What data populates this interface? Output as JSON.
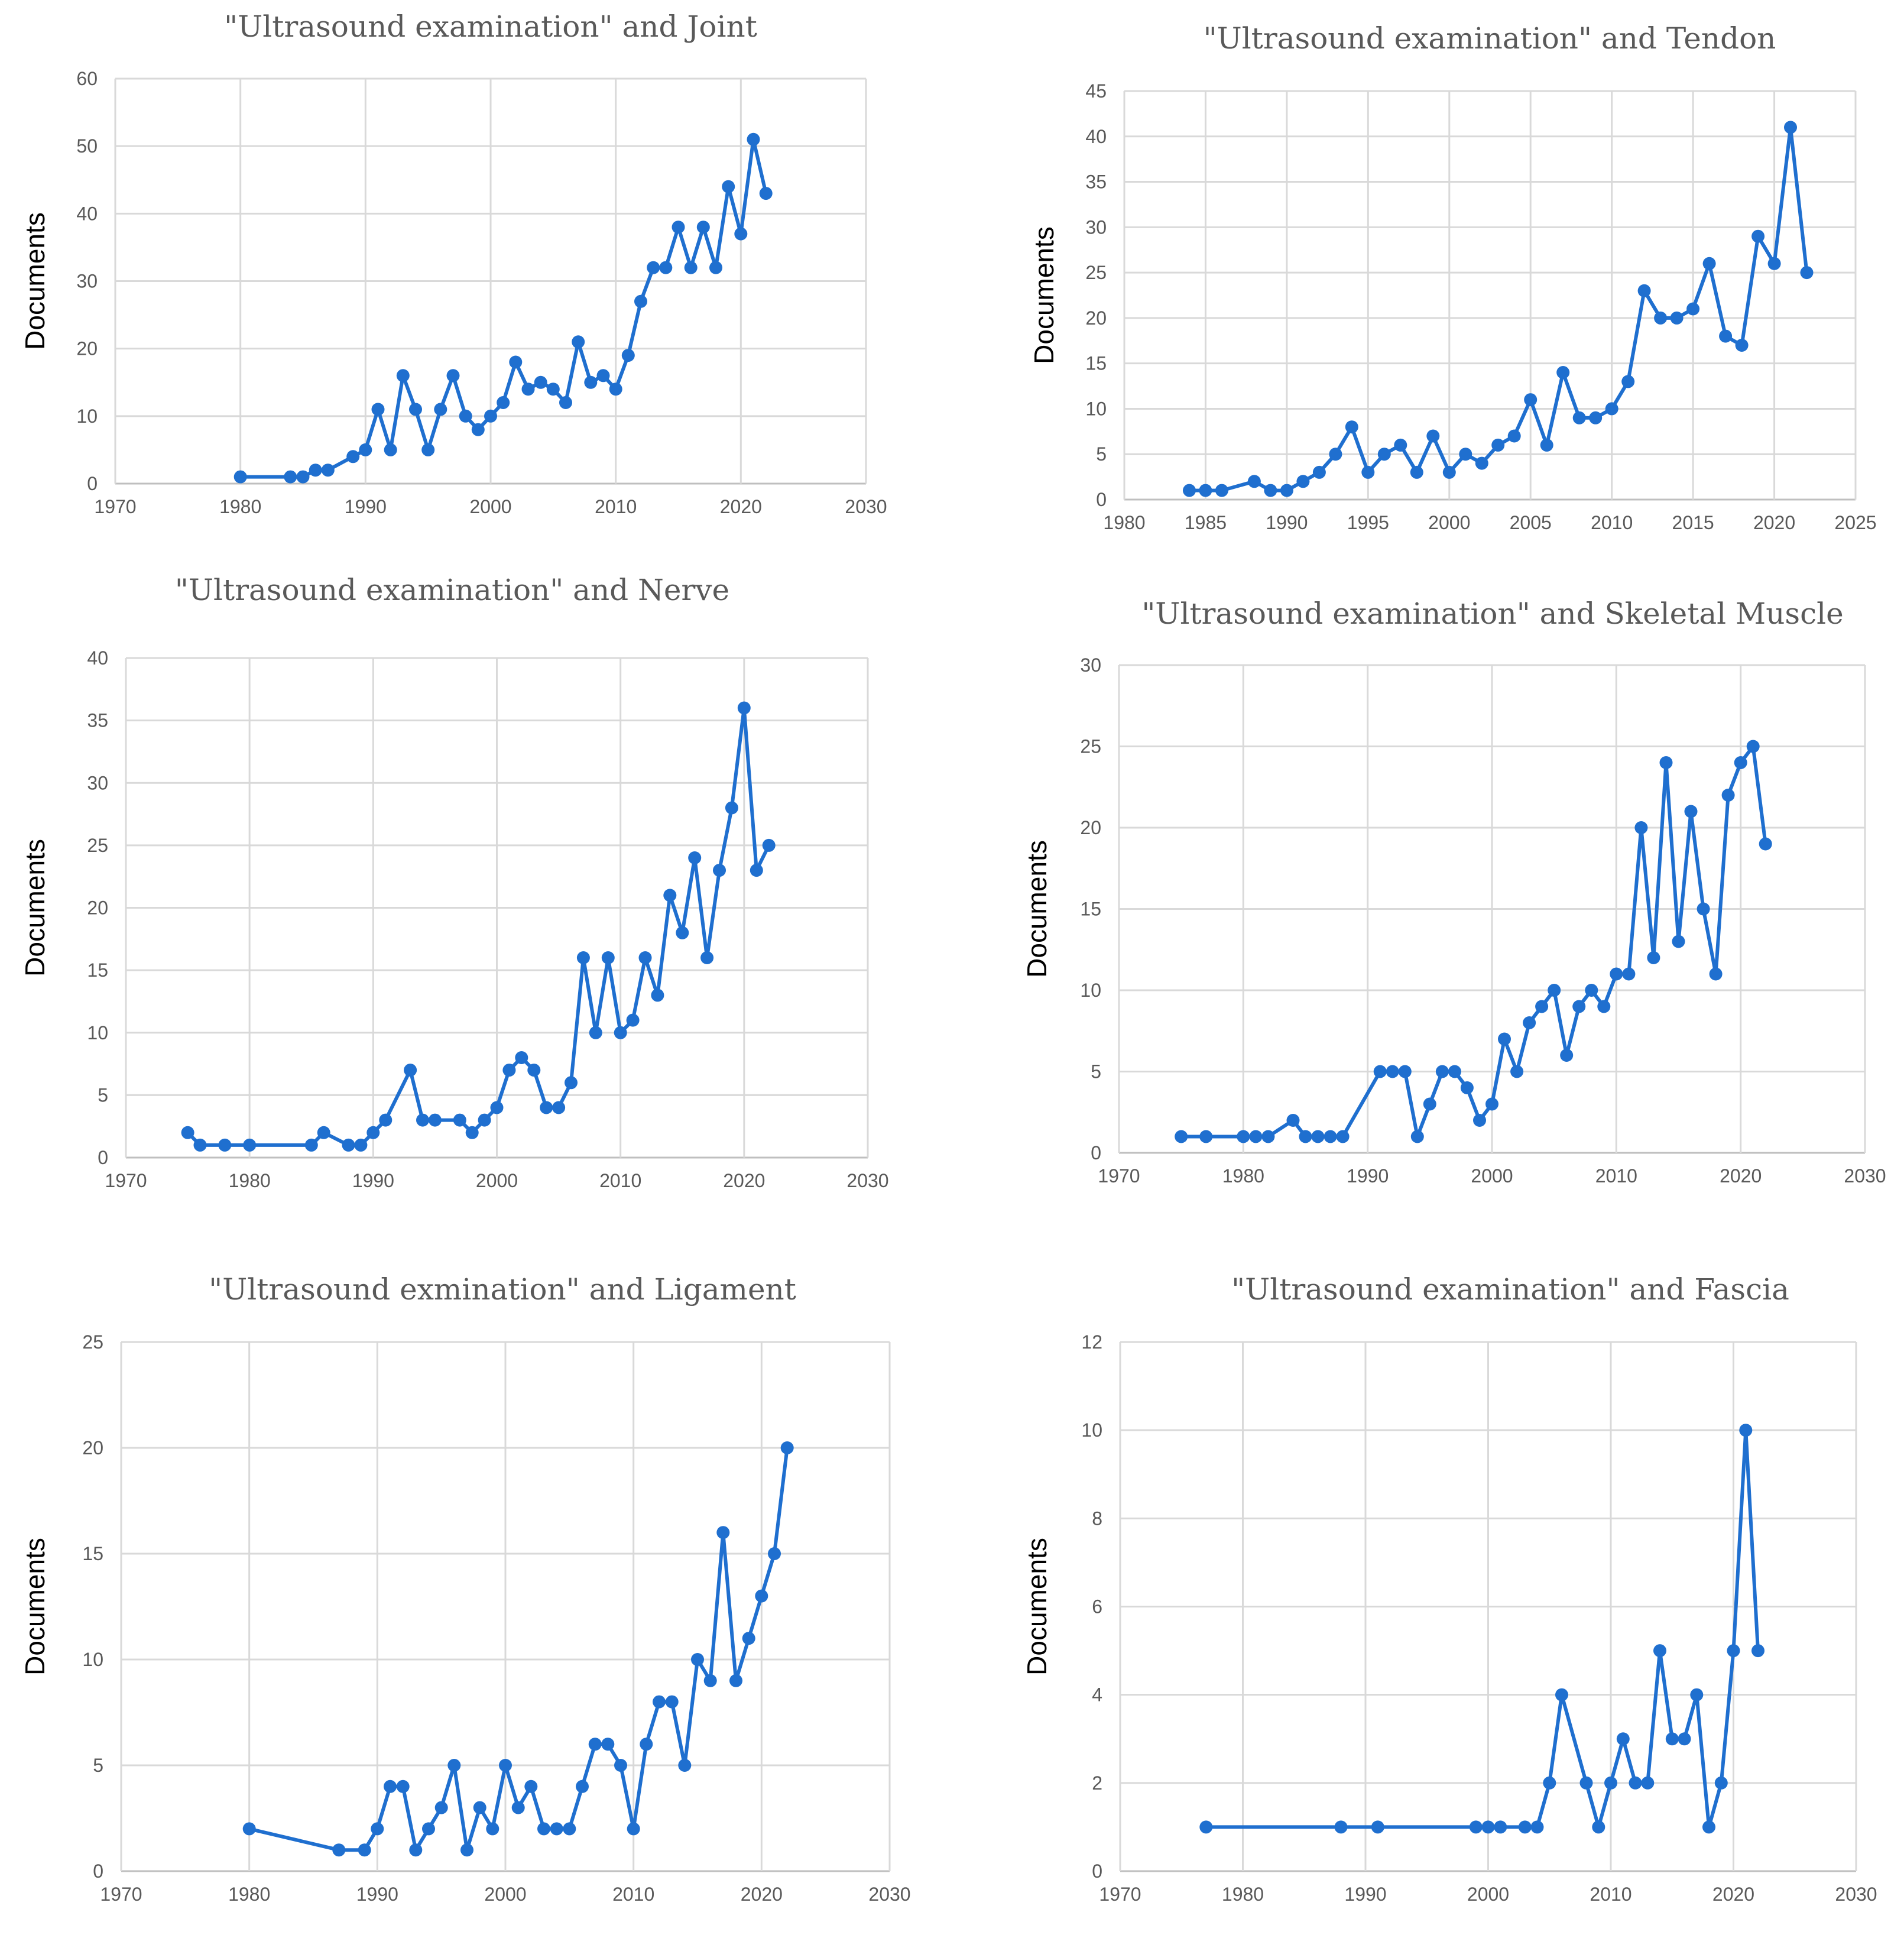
{
  "colors": {
    "series": "#1f6fcf",
    "grid": "#d9d9d9",
    "text": "#595959"
  },
  "chart_data": [
    {
      "type": "line",
      "title": "\"Ultrasound  examination\"  and  Joint",
      "xlabel": "",
      "ylabel": "Documents",
      "xlim": [
        1970,
        2030
      ],
      "xticks": [
        1970,
        1980,
        1990,
        2000,
        2010,
        2020,
        2030
      ],
      "ylim": [
        0,
        60
      ],
      "yticks": [
        0,
        10,
        20,
        30,
        40,
        50,
        60
      ],
      "grid": true,
      "series": [
        {
          "name": "Joint",
          "x": [
            1980,
            1984,
            1985,
            1986,
            1987,
            1989,
            1990,
            1991,
            1992,
            1993,
            1994,
            1995,
            1996,
            1997,
            1998,
            1999,
            2000,
            2001,
            2002,
            2003,
            2004,
            2005,
            2006,
            2007,
            2008,
            2009,
            2010,
            2011,
            2012,
            2013,
            2014,
            2015,
            2016,
            2017,
            2018,
            2019,
            2020,
            2021,
            2022
          ],
          "y": [
            1,
            1,
            1,
            2,
            2,
            4,
            5,
            11,
            5,
            16,
            11,
            5,
            11,
            16,
            10,
            8,
            10,
            12,
            18,
            14,
            15,
            14,
            12,
            21,
            15,
            16,
            14,
            19,
            27,
            32,
            32,
            38,
            32,
            38,
            32,
            44,
            37,
            51,
            43
          ]
        }
      ]
    },
    {
      "type": "line",
      "title": "\"Ultrasound  examination\"  and  Tendon",
      "xlabel": "",
      "ylabel": "Documents",
      "xlim": [
        1980,
        2025
      ],
      "xticks": [
        1980,
        1985,
        1990,
        1995,
        2000,
        2005,
        2010,
        2015,
        2020,
        2025
      ],
      "ylim": [
        0,
        45
      ],
      "yticks": [
        0,
        5,
        10,
        15,
        20,
        25,
        30,
        35,
        40,
        45
      ],
      "grid": true,
      "series": [
        {
          "name": "Tendon",
          "x": [
            1984,
            1985,
            1986,
            1988,
            1989,
            1990,
            1991,
            1992,
            1993,
            1994,
            1995,
            1996,
            1997,
            1998,
            1999,
            2000,
            2001,
            2002,
            2003,
            2004,
            2005,
            2006,
            2007,
            2008,
            2009,
            2010,
            2011,
            2012,
            2013,
            2014,
            2015,
            2016,
            2017,
            2018,
            2019,
            2020,
            2021,
            2022
          ],
          "y": [
            1,
            1,
            1,
            2,
            1,
            1,
            2,
            3,
            5,
            8,
            3,
            5,
            6,
            3,
            7,
            3,
            5,
            4,
            6,
            7,
            11,
            6,
            14,
            9,
            9,
            10,
            13,
            23,
            20,
            20,
            21,
            26,
            18,
            17,
            29,
            26,
            41,
            25
          ]
        }
      ]
    },
    {
      "type": "line",
      "title": "\"Ultrasound  examination\"  and  Nerve",
      "xlabel": "",
      "ylabel": "Documents",
      "xlim": [
        1970,
        2030
      ],
      "xticks": [
        1970,
        1980,
        1990,
        2000,
        2010,
        2020,
        2030
      ],
      "ylim": [
        0,
        40
      ],
      "yticks": [
        0,
        5,
        10,
        15,
        20,
        25,
        30,
        35,
        40
      ],
      "grid": true,
      "series": [
        {
          "name": "Nerve",
          "x": [
            1975,
            1976,
            1978,
            1980,
            1985,
            1986,
            1988,
            1989,
            1990,
            1991,
            1993,
            1994,
            1995,
            1997,
            1998,
            1999,
            2000,
            2001,
            2002,
            2003,
            2004,
            2005,
            2006,
            2007,
            2008,
            2009,
            2010,
            2011,
            2012,
            2013,
            2014,
            2015,
            2016,
            2017,
            2018,
            2019,
            2020,
            2021,
            2022
          ],
          "y": [
            2,
            1,
            1,
            1,
            1,
            2,
            1,
            1,
            2,
            3,
            7,
            3,
            3,
            3,
            2,
            3,
            4,
            7,
            8,
            7,
            4,
            4,
            6,
            16,
            10,
            16,
            10,
            11,
            16,
            13,
            21,
            18,
            24,
            16,
            23,
            28,
            36,
            23,
            25
          ]
        }
      ]
    },
    {
      "type": "line",
      "title": "\"Ultrasound  examination\"  and  Skeletal  Muscle",
      "xlabel": "",
      "ylabel": "Documents",
      "xlim": [
        1970,
        2030
      ],
      "xticks": [
        1970,
        1980,
        1990,
        2000,
        2010,
        2020,
        2030
      ],
      "ylim": [
        0,
        30
      ],
      "yticks": [
        0,
        5,
        10,
        15,
        20,
        25,
        30
      ],
      "grid": true,
      "series": [
        {
          "name": "Skeletal Muscle",
          "x": [
            1975,
            1977,
            1980,
            1981,
            1982,
            1984,
            1985,
            1986,
            1987,
            1988,
            1991,
            1992,
            1993,
            1994,
            1995,
            1996,
            1997,
            1998,
            1999,
            2000,
            2001,
            2002,
            2003,
            2004,
            2005,
            2006,
            2007,
            2008,
            2009,
            2010,
            2011,
            2012,
            2013,
            2014,
            2015,
            2016,
            2017,
            2018,
            2019,
            2020,
            2021,
            2022
          ],
          "y": [
            1,
            1,
            1,
            1,
            1,
            2,
            1,
            1,
            1,
            1,
            5,
            5,
            5,
            1,
            3,
            5,
            5,
            4,
            2,
            3,
            7,
            5,
            8,
            9,
            10,
            6,
            9,
            10,
            9,
            11,
            11,
            20,
            12,
            24,
            13,
            21,
            15,
            11,
            22,
            24,
            25,
            19
          ]
        }
      ]
    },
    {
      "type": "line",
      "title": "\"Ultrasound  exmination\"  and  Ligament",
      "xlabel": "",
      "ylabel": "Documents",
      "xlim": [
        1970,
        2030
      ],
      "xticks": [
        1970,
        1980,
        1990,
        2000,
        2010,
        2020,
        2030
      ],
      "ylim": [
        0,
        25
      ],
      "yticks": [
        0,
        5,
        10,
        15,
        20,
        25
      ],
      "grid": true,
      "series": [
        {
          "name": "Ligament",
          "x": [
            1980,
            1987,
            1989,
            1990,
            1991,
            1992,
            1993,
            1994,
            1995,
            1996,
            1997,
            1998,
            1999,
            2000,
            2001,
            2002,
            2003,
            2004,
            2005,
            2006,
            2007,
            2008,
            2009,
            2010,
            2011,
            2012,
            2013,
            2014,
            2015,
            2016,
            2017,
            2018,
            2019,
            2020,
            2021,
            2022
          ],
          "y": [
            2,
            1,
            1,
            2,
            4,
            4,
            1,
            2,
            3,
            5,
            1,
            3,
            2,
            5,
            3,
            4,
            2,
            2,
            2,
            4,
            6,
            6,
            5,
            2,
            6,
            8,
            8,
            5,
            10,
            9,
            16,
            9,
            11,
            13,
            15,
            20
          ]
        }
      ]
    },
    {
      "type": "line",
      "title": "\"Ultrasound   examination\"  and  Fascia",
      "xlabel": "",
      "ylabel": "Documents",
      "xlim": [
        1970,
        2030
      ],
      "xticks": [
        1970,
        1980,
        1990,
        2000,
        2010,
        2020,
        2030
      ],
      "ylim": [
        0,
        12
      ],
      "yticks": [
        0,
        2,
        4,
        6,
        8,
        10,
        12
      ],
      "grid": true,
      "series": [
        {
          "name": "Fascia",
          "x": [
            1977,
            1988,
            1991,
            1999,
            2000,
            2001,
            2003,
            2004,
            2005,
            2006,
            2008,
            2009,
            2010,
            2011,
            2012,
            2013,
            2014,
            2015,
            2016,
            2017,
            2018,
            2019,
            2020,
            2021,
            2022
          ],
          "y": [
            1,
            1,
            1,
            1,
            1,
            1,
            1,
            1,
            2,
            4,
            2,
            1,
            2,
            3,
            2,
            2,
            5,
            3,
            3,
            4,
            1,
            2,
            5,
            10,
            5
          ]
        }
      ]
    }
  ]
}
